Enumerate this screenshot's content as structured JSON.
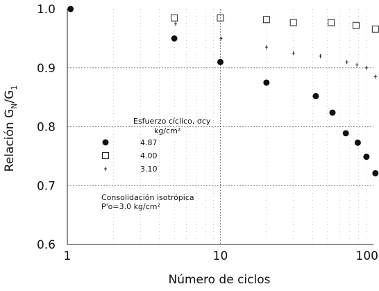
{
  "chart_data": {
    "type": "scatter",
    "x_scale": "log",
    "xlim": [
      1,
      100
    ],
    "ylim": [
      0.6,
      1.0
    ],
    "grid": true,
    "xlabel": "Número de ciclos",
    "ylabel_parts": [
      "Relación G",
      "N",
      "/G",
      "1"
    ],
    "x_ticks": [
      {
        "value": 1,
        "label": "1"
      },
      {
        "value": 10,
        "label": "10"
      },
      {
        "value": 100,
        "label": "100"
      }
    ],
    "y_ticks": [
      {
        "value": 0.6,
        "label": "0.6"
      },
      {
        "value": 0.7,
        "label": "0.7"
      },
      {
        "value": 0.8,
        "label": "0.8"
      },
      {
        "value": 0.9,
        "label": "0.9"
      },
      {
        "value": 1.0,
        "label": "1.0"
      }
    ],
    "legend": {
      "title_line1": "Esfuerzo cíclico, σcy",
      "title_line2": "kg/cm²",
      "placement": "center-left"
    },
    "annotation_lines": [
      "Consolidación isotrópica",
      "P'o=3.0  kg/cm²"
    ],
    "series": [
      {
        "name": "4.87",
        "marker": "filled-circle",
        "points": [
          {
            "x": 1.05,
            "y": 1.0
          },
          {
            "x": 5,
            "y": 0.95
          },
          {
            "x": 10,
            "y": 0.91
          },
          {
            "x": 20,
            "y": 0.875
          },
          {
            "x": 42,
            "y": 0.852
          },
          {
            "x": 54,
            "y": 0.824
          },
          {
            "x": 66,
            "y": 0.789
          },
          {
            "x": 79,
            "y": 0.773
          },
          {
            "x": 90,
            "y": 0.749
          },
          {
            "x": 103,
            "y": 0.721
          }
        ]
      },
      {
        "name": "4.00",
        "marker": "open-square",
        "points": [
          {
            "x": 5,
            "y": 0.985
          },
          {
            "x": 10,
            "y": 0.985
          },
          {
            "x": 20,
            "y": 0.982
          },
          {
            "x": 30,
            "y": 0.977
          },
          {
            "x": 53,
            "y": 0.977
          },
          {
            "x": 77,
            "y": 0.972
          },
          {
            "x": 103,
            "y": 0.966
          }
        ]
      },
      {
        "name": "3.10",
        "marker": "plus",
        "points": [
          {
            "x": 5.1,
            "y": 0.975
          },
          {
            "x": 10.1,
            "y": 0.95
          },
          {
            "x": 20,
            "y": 0.935
          },
          {
            "x": 30,
            "y": 0.925
          },
          {
            "x": 45,
            "y": 0.92
          },
          {
            "x": 67,
            "y": 0.91
          },
          {
            "x": 78,
            "y": 0.905
          },
          {
            "x": 90,
            "y": 0.9
          },
          {
            "x": 103,
            "y": 0.885
          }
        ]
      }
    ]
  }
}
